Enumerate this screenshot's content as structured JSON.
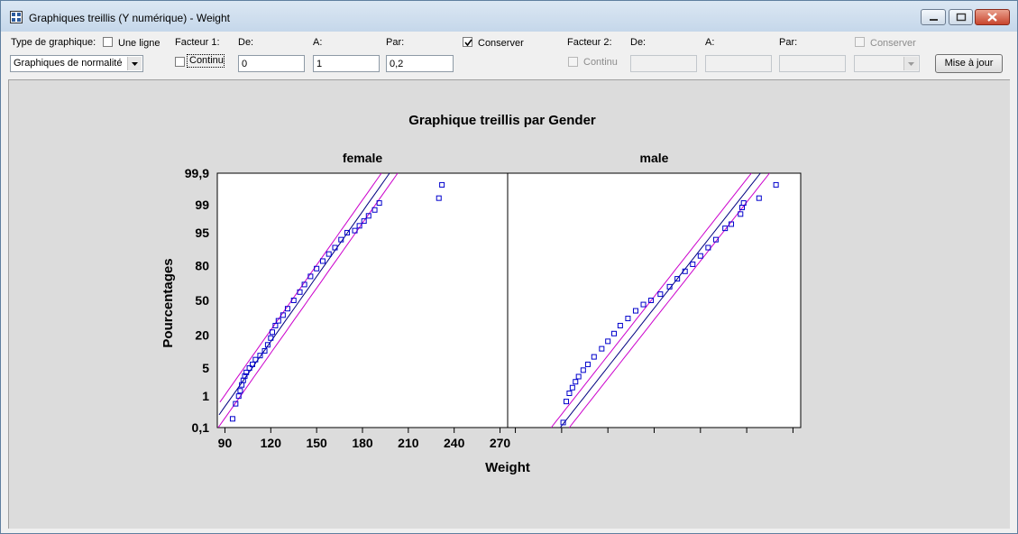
{
  "window": {
    "title": "Graphiques treillis (Y numérique) - Weight",
    "minimize_icon": "minimize-icon",
    "maximize_icon": "maximize-icon",
    "close_icon": "close-icon"
  },
  "toolbar": {
    "chart_type_label": "Type de graphique:",
    "one_line_label": "Une ligne",
    "one_line_checked": false,
    "chart_type_value": "Graphiques de normalité",
    "factor1": {
      "label": "Facteur 1:",
      "continu_label": "Continu",
      "continu_checked": false,
      "from_label": "De:",
      "from_value": "0",
      "to_label": "A:",
      "to_value": "1",
      "step_label": "Par:",
      "step_value": "0,2",
      "keep_label": "Conserver",
      "keep_checked": true
    },
    "factor2": {
      "label": "Facteur 2:",
      "continu_label": "Continu",
      "continu_checked": false,
      "from_label": "De:",
      "from_value": "",
      "to_label": "A:",
      "to_value": "",
      "step_label": "Par:",
      "step_value": "",
      "keep_label": "Conserver",
      "keep_checked": false,
      "select_value": ""
    },
    "update_button": "Mise à jour"
  },
  "chart_data": {
    "type": "scatter",
    "subtype": "normal probability plot (trellis)",
    "title": "Graphique treillis par Gender",
    "xlabel": "Weight",
    "ylabel": "Pourcentages",
    "xlim": [
      85,
      275
    ],
    "x_ticks": [
      90,
      120,
      150,
      180,
      210,
      240,
      270
    ],
    "x_tick_labels": [
      "90",
      "120",
      "150",
      "180",
      "210",
      "240",
      "270"
    ],
    "y_ticks": [
      0.1,
      1,
      5,
      20,
      50,
      80,
      95,
      99,
      99.9
    ],
    "y_tick_labels": [
      "0,1",
      "1",
      "5",
      "20",
      "50",
      "80",
      "95",
      "99",
      "99,9"
    ],
    "y_scale": "normal probability",
    "grid": false,
    "colors": {
      "points": "#0000cc",
      "fit_line": "#000080",
      "limits": "#cc00cc"
    },
    "panels": [
      {
        "name": "female",
        "fit": {
          "mean": 139,
          "sd": 19
        },
        "limit_offset_pct": 0.28,
        "points": [
          [
            95,
            0.2
          ],
          [
            97,
            0.6
          ],
          [
            99,
            1.0
          ],
          [
            100,
            1.4
          ],
          [
            101,
            2.0
          ],
          [
            102,
            2.6
          ],
          [
            103,
            3.3
          ],
          [
            104,
            4.0
          ],
          [
            106,
            5.0
          ],
          [
            108,
            6.0
          ],
          [
            110,
            7.5
          ],
          [
            113,
            9.0
          ],
          [
            116,
            11
          ],
          [
            118,
            14
          ],
          [
            120,
            18
          ],
          [
            121,
            22
          ],
          [
            123,
            27
          ],
          [
            125,
            31
          ],
          [
            128,
            36
          ],
          [
            131,
            42
          ],
          [
            135,
            50
          ],
          [
            139,
            58
          ],
          [
            142,
            65
          ],
          [
            146,
            72
          ],
          [
            150,
            78
          ],
          [
            154,
            83
          ],
          [
            158,
            87
          ],
          [
            162,
            90
          ],
          [
            166,
            93
          ],
          [
            170,
            95
          ],
          [
            175,
            95.5
          ],
          [
            178,
            96.5
          ],
          [
            181,
            97.3
          ],
          [
            184,
            98
          ],
          [
            188,
            98.6
          ],
          [
            191,
            99.1
          ],
          [
            230,
            99.35
          ],
          [
            232,
            99.75
          ]
        ]
      },
      {
        "name": "male",
        "fit": {
          "mean": 184,
          "sd": 21
        },
        "limit_offset_pct": 0.28,
        "points": [
          [
            121,
            0.15
          ],
          [
            123,
            0.7
          ],
          [
            125,
            1.2
          ],
          [
            127,
            1.7
          ],
          [
            129,
            2.4
          ],
          [
            131,
            3.2
          ],
          [
            134,
            4.5
          ],
          [
            137,
            6
          ],
          [
            141,
            8.5
          ],
          [
            146,
            12
          ],
          [
            150,
            16
          ],
          [
            154,
            21
          ],
          [
            158,
            27
          ],
          [
            163,
            33
          ],
          [
            168,
            40
          ],
          [
            173,
            46
          ],
          [
            178,
            50
          ],
          [
            184,
            56
          ],
          [
            190,
            63
          ],
          [
            195,
            70
          ],
          [
            200,
            76
          ],
          [
            205,
            81
          ],
          [
            210,
            86
          ],
          [
            215,
            90
          ],
          [
            220,
            93
          ],
          [
            226,
            96
          ],
          [
            230,
            96.8
          ],
          [
            236,
            98.2
          ],
          [
            237,
            98.8
          ],
          [
            238,
            99.1
          ],
          [
            248,
            99.35
          ],
          [
            259,
            99.75
          ]
        ]
      }
    ]
  }
}
